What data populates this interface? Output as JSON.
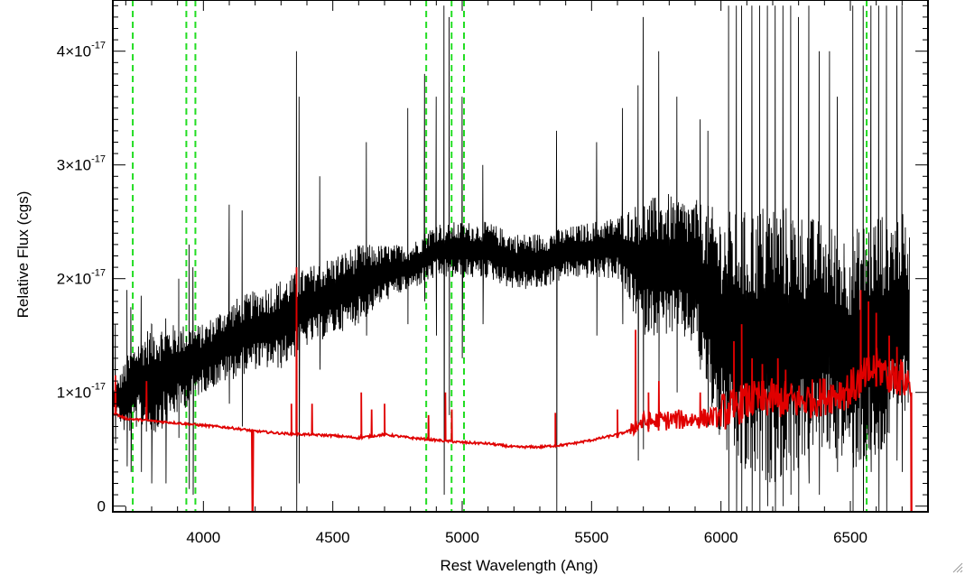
{
  "chart_data": {
    "type": "line",
    "xlabel": "Rest Wavelength (Ang)",
    "ylabel": "Relative Flux (cgs)",
    "xlim": [
      3650,
      6800
    ],
    "ylim": [
      -0.05,
      4.45
    ],
    "y_scale_label": "x 10^-17",
    "x_ticks": [
      {
        "value": 4000,
        "label": "4000"
      },
      {
        "value": 4500,
        "label": "4500"
      },
      {
        "value": 5000,
        "label": "5000"
      },
      {
        "value": 5500,
        "label": "5500"
      },
      {
        "value": 6000,
        "label": "6000"
      },
      {
        "value": 6500,
        "label": "6500"
      }
    ],
    "y_ticks": [
      {
        "value": 0,
        "mantissa": "0",
        "exponent": ""
      },
      {
        "value": 1,
        "mantissa": "1×10",
        "exponent": "-17"
      },
      {
        "value": 2,
        "mantissa": "2×10",
        "exponent": "-17"
      },
      {
        "value": 3,
        "mantissa": "3×10",
        "exponent": "-17"
      },
      {
        "value": 4,
        "mantissa": "4×10",
        "exponent": "-17"
      }
    ],
    "reference_lines": [
      3727,
      3934,
      3969,
      4861,
      4959,
      5007,
      6563
    ],
    "series": [
      {
        "role": "observed",
        "color": "#000000",
        "envelope": [
          [
            3650,
            1.0,
            0.9
          ],
          [
            3700,
            1.3,
            0.6
          ],
          [
            3750,
            1.5,
            0.7
          ],
          [
            3800,
            1.6,
            0.6
          ],
          [
            3900,
            1.6,
            0.8
          ],
          [
            4000,
            1.6,
            1.0
          ],
          [
            4100,
            1.8,
            1.1
          ],
          [
            4200,
            1.9,
            1.2
          ],
          [
            4300,
            2.0,
            1.2
          ],
          [
            4400,
            2.1,
            1.4
          ],
          [
            4500,
            2.2,
            1.5
          ],
          [
            4600,
            2.3,
            1.6
          ],
          [
            4700,
            2.3,
            1.8
          ],
          [
            4800,
            2.3,
            1.9
          ],
          [
            4900,
            2.5,
            2.0
          ],
          [
            5000,
            2.5,
            2.0
          ],
          [
            5100,
            2.5,
            2.0
          ],
          [
            5200,
            2.4,
            1.9
          ],
          [
            5300,
            2.4,
            1.9
          ],
          [
            5400,
            2.45,
            2.0
          ],
          [
            5500,
            2.5,
            2.0
          ],
          [
            5600,
            2.55,
            2.0
          ],
          [
            5700,
            2.7,
            1.5
          ],
          [
            5800,
            2.75,
            1.5
          ],
          [
            5900,
            2.7,
            1.4
          ],
          [
            6000,
            2.6,
            0.5
          ],
          [
            6100,
            2.6,
            0.2
          ],
          [
            6200,
            2.7,
            0.2
          ],
          [
            6300,
            2.6,
            0.3
          ],
          [
            6400,
            2.5,
            0.5
          ],
          [
            6500,
            2.4,
            0.3
          ],
          [
            6600,
            2.6,
            0.3
          ],
          [
            6700,
            2.6,
            0.8
          ],
          [
            6730,
            2.4,
            0.9
          ]
        ],
        "spikes": [
          [
            3660,
            1.6,
            0.55
          ],
          [
            3705,
            1.9,
            0.35
          ],
          [
            3720,
            1.75,
            0.3
          ],
          [
            3760,
            1.85,
            0.3
          ],
          [
            3800,
            1.6,
            0.2
          ],
          [
            3855,
            1.65,
            0.2
          ],
          [
            3905,
            2.0,
            0.6
          ],
          [
            3945,
            2.3,
            0.15
          ],
          [
            3960,
            2.1,
            0.1
          ],
          [
            4100,
            2.65,
            0.9
          ],
          [
            4150,
            2.6,
            0.7
          ],
          [
            4360,
            4.0,
            -0.1
          ],
          [
            4370,
            3.6,
            0.2
          ],
          [
            4450,
            2.9,
            1.2
          ],
          [
            4630,
            3.2,
            1.5
          ],
          [
            4790,
            3.5,
            1.6
          ],
          [
            4855,
            3.8,
            1.8
          ],
          [
            4900,
            3.6,
            1.5
          ],
          [
            4930,
            4.4,
            0.1
          ],
          [
            4950,
            4.3,
            0.8
          ],
          [
            5000,
            3.6,
            1.3
          ],
          [
            5080,
            3.0,
            1.6
          ],
          [
            5365,
            3.3,
            -0.05
          ],
          [
            5520,
            3.2,
            1.5
          ],
          [
            5620,
            3.5,
            1.6
          ],
          [
            5680,
            3.7,
            0.4
          ],
          [
            5700,
            4.3,
            0.5
          ],
          [
            5760,
            4.0,
            1.0
          ],
          [
            5830,
            3.6,
            1.0
          ],
          [
            5920,
            3.4,
            1.2
          ],
          [
            5950,
            3.3,
            0.7
          ],
          [
            6030,
            4.4,
            -0.05
          ],
          [
            6060,
            4.4,
            -0.05
          ],
          [
            6080,
            4.4,
            -0.05
          ],
          [
            6120,
            4.4,
            -0.05
          ],
          [
            6150,
            4.4,
            -0.05
          ],
          [
            6180,
            4.4,
            0.0
          ],
          [
            6210,
            4.4,
            -0.05
          ],
          [
            6240,
            4.4,
            0.0
          ],
          [
            6270,
            4.4,
            0.1
          ],
          [
            6300,
            4.3,
            -0.05
          ],
          [
            6340,
            4.4,
            0.2
          ],
          [
            6380,
            4.0,
            0.1
          ],
          [
            6420,
            4.0,
            0.6
          ],
          [
            6450,
            3.6,
            0.3
          ],
          [
            6510,
            4.4,
            -0.05
          ],
          [
            6550,
            4.4,
            -0.05
          ],
          [
            6580,
            4.4,
            0.3
          ],
          [
            6610,
            4.4,
            -0.05
          ],
          [
            6640,
            4.4,
            -0.05
          ],
          [
            6680,
            4.4,
            0.4
          ],
          [
            6700,
            4.4,
            0.3
          ]
        ]
      },
      {
        "role": "model",
        "color": "#e00000",
        "continuum": [
          [
            3650,
            0.82
          ],
          [
            3700,
            0.77
          ],
          [
            3800,
            0.75
          ],
          [
            3900,
            0.73
          ],
          [
            4000,
            0.71
          ],
          [
            4100,
            0.69
          ],
          [
            4200,
            0.66
          ],
          [
            4300,
            0.64
          ],
          [
            4400,
            0.63
          ],
          [
            4500,
            0.62
          ],
          [
            4600,
            0.6
          ],
          [
            4700,
            0.63
          ],
          [
            4800,
            0.6
          ],
          [
            4900,
            0.58
          ],
          [
            5000,
            0.56
          ],
          [
            5100,
            0.55
          ],
          [
            5200,
            0.52
          ],
          [
            5300,
            0.52
          ],
          [
            5400,
            0.54
          ],
          [
            5500,
            0.58
          ],
          [
            5600,
            0.63
          ],
          [
            5700,
            0.7
          ],
          [
            5800,
            0.72
          ],
          [
            5900,
            0.73
          ],
          [
            6000,
            0.75
          ],
          [
            6100,
            0.85
          ],
          [
            6200,
            0.88
          ],
          [
            6300,
            0.85
          ],
          [
            6400,
            0.9
          ],
          [
            6500,
            0.96
          ],
          [
            6600,
            1.15
          ],
          [
            6700,
            1.05
          ],
          [
            6735,
            1.0
          ]
        ],
        "features": [
          [
            3660,
            1.15,
            0.95
          ],
          [
            3780,
            1.1,
            0.85
          ],
          [
            4190,
            0.55,
            -0.05
          ],
          [
            4360,
            2.1,
            0.65
          ],
          [
            4340,
            0.9,
            0.63
          ],
          [
            4420,
            0.9,
            0.63
          ],
          [
            4610,
            1.0,
            0.63
          ],
          [
            4650,
            0.85,
            0.62
          ],
          [
            4700,
            0.9,
            0.62
          ],
          [
            4870,
            0.8,
            0.6
          ],
          [
            4935,
            1.0,
            0.58
          ],
          [
            4960,
            0.85,
            0.58
          ],
          [
            5360,
            0.82,
            0.53
          ],
          [
            5600,
            0.85,
            0.6
          ],
          [
            5670,
            1.55,
            0.65
          ],
          [
            5720,
            1.0,
            0.68
          ],
          [
            5760,
            1.1,
            0.7
          ],
          [
            5920,
            1.0,
            0.73
          ],
          [
            6050,
            1.45,
            0.78
          ],
          [
            6080,
            1.6,
            0.8
          ],
          [
            6120,
            1.3,
            0.82
          ],
          [
            6160,
            1.25,
            0.84
          ],
          [
            6220,
            1.3,
            0.87
          ],
          [
            6250,
            1.2,
            0.85
          ],
          [
            6540,
            1.9,
            1.0
          ],
          [
            6570,
            1.8,
            1.1
          ],
          [
            6600,
            1.7,
            1.05
          ],
          [
            6650,
            1.5,
            1.0
          ],
          [
            6680,
            1.4,
            1.0
          ],
          [
            6736,
            1.0,
            -0.05
          ],
          [
            6800,
            -0.05,
            -0.05
          ]
        ]
      }
    ]
  }
}
